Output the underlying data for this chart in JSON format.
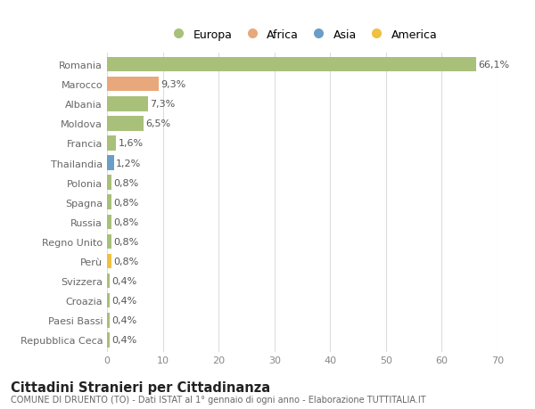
{
  "countries": [
    "Romania",
    "Marocco",
    "Albania",
    "Moldova",
    "Francia",
    "Thailandia",
    "Polonia",
    "Spagna",
    "Russia",
    "Regno Unito",
    "Perù",
    "Svizzera",
    "Croazia",
    "Paesi Bassi",
    "Repubblica Ceca"
  ],
  "values": [
    66.1,
    9.3,
    7.3,
    6.5,
    1.6,
    1.2,
    0.8,
    0.8,
    0.8,
    0.8,
    0.8,
    0.4,
    0.4,
    0.4,
    0.4
  ],
  "labels": [
    "66,1%",
    "9,3%",
    "7,3%",
    "6,5%",
    "1,6%",
    "1,2%",
    "0,8%",
    "0,8%",
    "0,8%",
    "0,8%",
    "0,8%",
    "0,4%",
    "0,4%",
    "0,4%",
    "0,4%"
  ],
  "continents": [
    "Europa",
    "Africa",
    "Europa",
    "Europa",
    "Europa",
    "Asia",
    "Europa",
    "Europa",
    "Europa",
    "Europa",
    "America",
    "Europa",
    "Europa",
    "Europa",
    "Europa"
  ],
  "continent_colors": {
    "Europa": "#a8c07a",
    "Africa": "#e8a87c",
    "Asia": "#6b9ec7",
    "America": "#f0c040"
  },
  "legend_order": [
    "Europa",
    "Africa",
    "Asia",
    "America"
  ],
  "title": "Cittadini Stranieri per Cittadinanza",
  "subtitle": "COMUNE DI DRUENTO (TO) - Dati ISTAT al 1° gennaio di ogni anno - Elaborazione TUTTITALIA.IT",
  "xlim": [
    0,
    70
  ],
  "xticks": [
    0,
    10,
    20,
    30,
    40,
    50,
    60,
    70
  ],
  "bg_color": "#ffffff",
  "grid_color": "#dddddd",
  "bar_height": 0.75,
  "label_fontsize": 8,
  "tick_fontsize": 8,
  "title_fontsize": 10.5,
  "subtitle_fontsize": 7
}
